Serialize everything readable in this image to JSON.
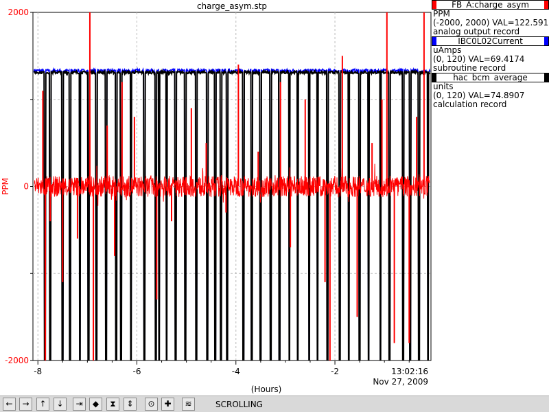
{
  "chart_data": {
    "type": "line",
    "title": "charge_asym.stp",
    "xlabel": "(Hours)",
    "ylabel": "PPM",
    "xlim": [
      -8.1,
      -0.06
    ],
    "ylim": [
      -2000,
      2000
    ],
    "y_ticks": [
      "2000",
      "0",
      "-2000"
    ],
    "x_ticks": [
      -8,
      -6,
      -4,
      -2
    ],
    "x_tick_labels": [
      "-8",
      "-6",
      "-4",
      "-2"
    ],
    "time_label": "13:02:16",
    "date_label": "Nov 27, 2009",
    "grid": true,
    "series": [
      {
        "name": "FB_A:charge_asym",
        "color": "#ff0000",
        "units": "PPM",
        "range": "(-2000, 2000)",
        "value": "VAL=122.591",
        "record_type": "analog output record",
        "baseline": 0,
        "noise": 120,
        "spikes": [
          {
            "x": -7.9,
            "y": 1100
          },
          {
            "x": -7.85,
            "y": -2000
          },
          {
            "x": -7.75,
            "y": -400
          },
          {
            "x": -7.5,
            "y": -1100
          },
          {
            "x": -7.2,
            "y": -600
          },
          {
            "x": -6.95,
            "y": 2000
          },
          {
            "x": -6.88,
            "y": -2000
          },
          {
            "x": -6.6,
            "y": 700
          },
          {
            "x": -6.45,
            "y": -800
          },
          {
            "x": -6.3,
            "y": 1200
          },
          {
            "x": -6.05,
            "y": 800
          },
          {
            "x": -5.6,
            "y": -1300
          },
          {
            "x": -5.3,
            "y": -400
          },
          {
            "x": -4.9,
            "y": 900
          },
          {
            "x": -4.6,
            "y": 500
          },
          {
            "x": -4.2,
            "y": -300
          },
          {
            "x": -3.95,
            "y": 1400
          },
          {
            "x": -3.55,
            "y": 400
          },
          {
            "x": -3.1,
            "y": 1200
          },
          {
            "x": -2.9,
            "y": -700
          },
          {
            "x": -2.6,
            "y": 1000
          },
          {
            "x": -2.2,
            "y": -1100
          },
          {
            "x": -2.1,
            "y": -2000
          },
          {
            "x": -1.85,
            "y": 1500
          },
          {
            "x": -1.55,
            "y": -1500
          },
          {
            "x": -1.25,
            "y": 500
          },
          {
            "x": -1.05,
            "y": 1000
          },
          {
            "x": -0.95,
            "y": 2000
          },
          {
            "x": -0.8,
            "y": -1800
          },
          {
            "x": -0.5,
            "y": -1800
          },
          {
            "x": -0.35,
            "y": 800
          },
          {
            "x": -0.2,
            "y": 2000
          }
        ]
      },
      {
        "name": "IBC0L02Current",
        "color": "#0000ff",
        "units": "uAmps",
        "range": "(0, 120)",
        "value": "VAL=69.4174",
        "record_type": "subroutine record",
        "baseline": 1330
      },
      {
        "name": "hac_bcm_average",
        "color": "#000000",
        "units": "units",
        "range": "(0, 120)",
        "value": "VAL=74.8907",
        "record_type": "calculation record",
        "baseline": 1310,
        "dropouts": [
          -7.86,
          -7.75,
          -7.5,
          -7.35,
          -7.15,
          -6.98,
          -6.82,
          -6.62,
          -6.42,
          -6.32,
          -6.12,
          -5.85,
          -5.62,
          -5.55,
          -5.4,
          -5.22,
          -5.02,
          -4.8,
          -4.58,
          -4.42,
          -4.3,
          -4.18,
          -3.85,
          -3.68,
          -3.5,
          -3.3,
          -3.12,
          -2.92,
          -2.75,
          -2.52,
          -2.35,
          -2.15,
          -1.9,
          -1.72,
          -1.5,
          -1.32,
          -1.08,
          -0.9,
          -0.62,
          -0.48,
          -0.3,
          -0.12
        ],
        "dropout_to": -2000
      }
    ]
  },
  "toolbar": {
    "buttons": [
      "←",
      "→",
      "↑",
      "↓",
      "⇥",
      "◆",
      "⧗",
      "⇕",
      "⊙",
      "✚",
      "≋"
    ],
    "button_icons": [
      "arrow-left-icon",
      "arrow-right-icon",
      "arrow-up-icon",
      "arrow-down-icon",
      "zoom-x-in-icon",
      "zoom-x-out-icon",
      "zoom-y-in-icon",
      "zoom-y-out-icon",
      "auto-scale-icon",
      "pan-icon",
      "scroll-mode-icon"
    ],
    "mode_label": "SCROLLING"
  }
}
